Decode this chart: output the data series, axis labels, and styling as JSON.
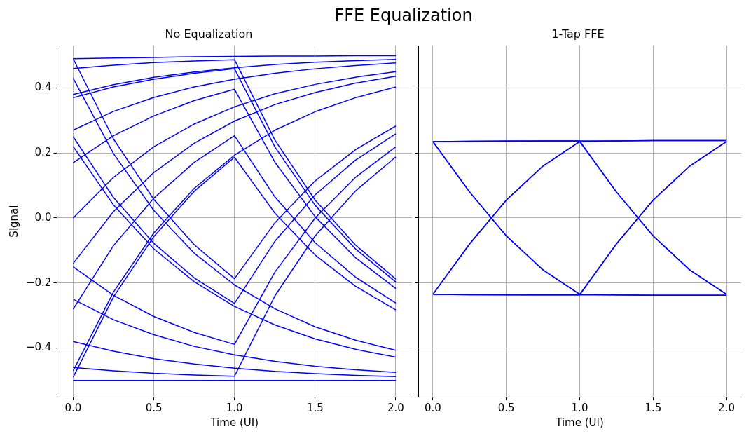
{
  "chart_data": [
    {
      "type": "line",
      "title": "FFE Equalization",
      "subtitle": "No Equalization",
      "xlabel": "Time (UI)",
      "ylabel": "Signal",
      "x": [
        0,
        0.25,
        0.5,
        0.75,
        1,
        1.25,
        1.5,
        1.75,
        2
      ],
      "xlim": [
        -0.1,
        2.1
      ],
      "ylim": [
        -0.55,
        0.53
      ],
      "xticks": [
        {
          "value": 0,
          "label": "0.0"
        },
        {
          "value": 0.5,
          "label": "0.5"
        },
        {
          "value": 1,
          "label": "1.0"
        },
        {
          "value": 1.5,
          "label": "1.5"
        },
        {
          "value": 2,
          "label": "2.0"
        }
      ],
      "yticks": [
        {
          "value": -0.4,
          "label": "−0.4"
        },
        {
          "value": -0.2,
          "label": "−0.2"
        },
        {
          "value": 0,
          "label": "0.0"
        },
        0.2,
        0.4
      ],
      "grid": true,
      "legend": false,
      "marker": "none",
      "line_style": "solid",
      "series": [
        {
          "color": "#0000ff",
          "values": [
            0.49,
            0.492,
            0.494,
            0.496,
            0.497,
            0.498,
            0.498,
            0.499,
            0.499
          ]
        },
        {
          "color": "#0000ff",
          "values": [
            0.46,
            0.47,
            0.478,
            0.483,
            0.487,
            0.24,
            0.055,
            -0.083,
            -0.188
          ]
        },
        {
          "color": "#0000ff",
          "values": [
            0.38,
            0.41,
            0.433,
            0.449,
            0.462,
            0.472,
            0.479,
            0.484,
            0.488
          ]
        },
        {
          "color": "#0000ff",
          "values": [
            0.27,
            0.328,
            0.371,
            0.403,
            0.427,
            0.445,
            0.459,
            0.469,
            0.477
          ]
        },
        {
          "color": "#0000ff",
          "values": [
            0.25,
            0.063,
            -0.078,
            -0.184,
            -0.263,
            -0.072,
            0.071,
            0.178,
            0.259
          ]
        },
        {
          "color": "#0000ff",
          "values": [
            0,
            0.125,
            0.219,
            0.289,
            0.342,
            0.382,
            0.411,
            0.433,
            0.45
          ]
        },
        {
          "color": "#0000ff",
          "values": [
            0.22,
            0.04,
            -0.095,
            -0.196,
            -0.272,
            -0.329,
            -0.372,
            -0.404,
            -0.428
          ]
        },
        {
          "color": "#0000ff",
          "values": [
            0.17,
            0.253,
            0.314,
            0.361,
            0.396,
            0.172,
            0.004,
            -0.122,
            -0.217
          ]
        },
        {
          "color": "#0000ff",
          "values": [
            -0.14,
            0.02,
            0.14,
            0.23,
            0.298,
            0.349,
            0.386,
            0.415,
            0.436
          ]
        },
        {
          "color": "#0000ff",
          "values": [
            -0.15,
            -0.238,
            -0.303,
            -0.352,
            -0.389,
            -0.167,
            0,
            0.125,
            0.219
          ]
        },
        {
          "color": "#0000ff",
          "values": [
            -0.25,
            -0.313,
            -0.359,
            -0.395,
            -0.421,
            -0.441,
            -0.456,
            -0.467,
            -0.475
          ]
        },
        {
          "color": "#0000ff",
          "values": [
            -0.28,
            -0.085,
            0.061,
            0.171,
            0.253,
            0.065,
            -0.076,
            -0.182,
            -0.262
          ]
        },
        {
          "color": "#0000ff",
          "values": [
            -0.38,
            -0.41,
            -0.433,
            -0.449,
            -0.462,
            -0.472,
            -0.479,
            -0.484,
            -0.488
          ]
        },
        {
          "color": "#0000ff",
          "values": [
            -0.47,
            -0.228,
            -0.046,
            0.091,
            0.193,
            0.27,
            0.327,
            0.37,
            0.403
          ]
        },
        {
          "color": "#0000ff",
          "values": [
            -0.49,
            -0.243,
            -0.057,
            0.082,
            0.187,
            0.015,
            -0.114,
            -0.21,
            -0.283
          ]
        },
        {
          "color": "#0000ff",
          "values": [
            -0.5,
            -0.5,
            -0.5,
            -0.5,
            -0.5,
            -0.5,
            -0.5,
            -0.5,
            -0.5
          ]
        },
        {
          "color": "#0000ff",
          "values": [
            0.43,
            0.198,
            0.023,
            -0.108,
            -0.206,
            -0.279,
            -0.335,
            -0.376,
            -0.407
          ]
        },
        {
          "color": "#0000ff",
          "values": [
            -0.46,
            -0.47,
            -0.478,
            -0.483,
            -0.487,
            -0.24,
            -0.055,
            0.083,
            0.188
          ]
        },
        {
          "color": "#0000ff",
          "values": [
            0.49,
            0.243,
            0.057,
            -0.082,
            -0.187,
            -0.015,
            0.114,
            0.21,
            0.283
          ]
        },
        {
          "color": "#0000ff",
          "values": [
            0.37,
            0.403,
            0.427,
            0.445,
            0.459,
            0.219,
            0.039,
            -0.095,
            -0.197
          ]
        }
      ]
    },
    {
      "type": "line",
      "subtitle": "1-Tap FFE",
      "xlabel": "Time (UI)",
      "x": [
        0,
        0.25,
        0.5,
        0.75,
        1,
        1.25,
        1.5,
        1.75,
        2
      ],
      "xlim": [
        -0.1,
        2.1
      ],
      "ylim": [
        -0.55,
        0.53
      ],
      "xticks": [
        {
          "value": 0,
          "label": "0.0"
        },
        {
          "value": 0.5,
          "label": "0.5"
        },
        {
          "value": 1,
          "label": "1.0"
        },
        {
          "value": 1.5,
          "label": "1.5"
        },
        {
          "value": 2,
          "label": "2.0"
        }
      ],
      "yticks": [
        {
          "value": -0.4,
          "label": null
        },
        {
          "value": -0.2,
          "label": null
        },
        {
          "value": 0,
          "label": null
        },
        {
          "value": 0.2,
          "label": null
        },
        {
          "value": 0.4,
          "label": null
        }
      ],
      "tick_labels": "x",
      "grid": true,
      "legend": false,
      "marker": "none",
      "line_style": "solid",
      "series": [
        {
          "color": "#0000ff",
          "values": [
            0.235,
            0.236,
            0.236,
            0.237,
            0.237,
            0.237,
            0.238,
            0.238,
            0.238
          ]
        },
        {
          "color": "#0000ff",
          "values": [
            -0.235,
            -0.236,
            -0.236,
            -0.237,
            -0.237,
            -0.237,
            -0.238,
            -0.238,
            -0.238
          ]
        },
        {
          "color": "#0000ff",
          "values": [
            0.235,
            0.08,
            -0.055,
            -0.16,
            -0.235,
            -0.08,
            0.055,
            0.16,
            0.235
          ]
        },
        {
          "color": "#0000ff",
          "values": [
            -0.235,
            -0.08,
            0.055,
            0.16,
            0.235,
            0.08,
            -0.055,
            -0.16,
            -0.235
          ]
        },
        {
          "color": "#0000ff",
          "values": [
            -0.235,
            -0.08,
            0.055,
            0.16,
            0.235,
            0.237,
            0.238,
            0.238,
            0.238
          ]
        },
        {
          "color": "#0000ff",
          "values": [
            0.235,
            0.08,
            -0.055,
            -0.16,
            -0.235,
            -0.237,
            -0.238,
            -0.238,
            -0.238
          ]
        },
        {
          "color": "#0000ff",
          "values": [
            0.235,
            0.236,
            0.237,
            0.237,
            0.237,
            0.08,
            -0.055,
            -0.16,
            -0.235
          ]
        },
        {
          "color": "#0000ff",
          "values": [
            -0.235,
            -0.236,
            -0.237,
            -0.237,
            -0.237,
            -0.08,
            0.055,
            0.16,
            0.235
          ]
        }
      ]
    }
  ]
}
